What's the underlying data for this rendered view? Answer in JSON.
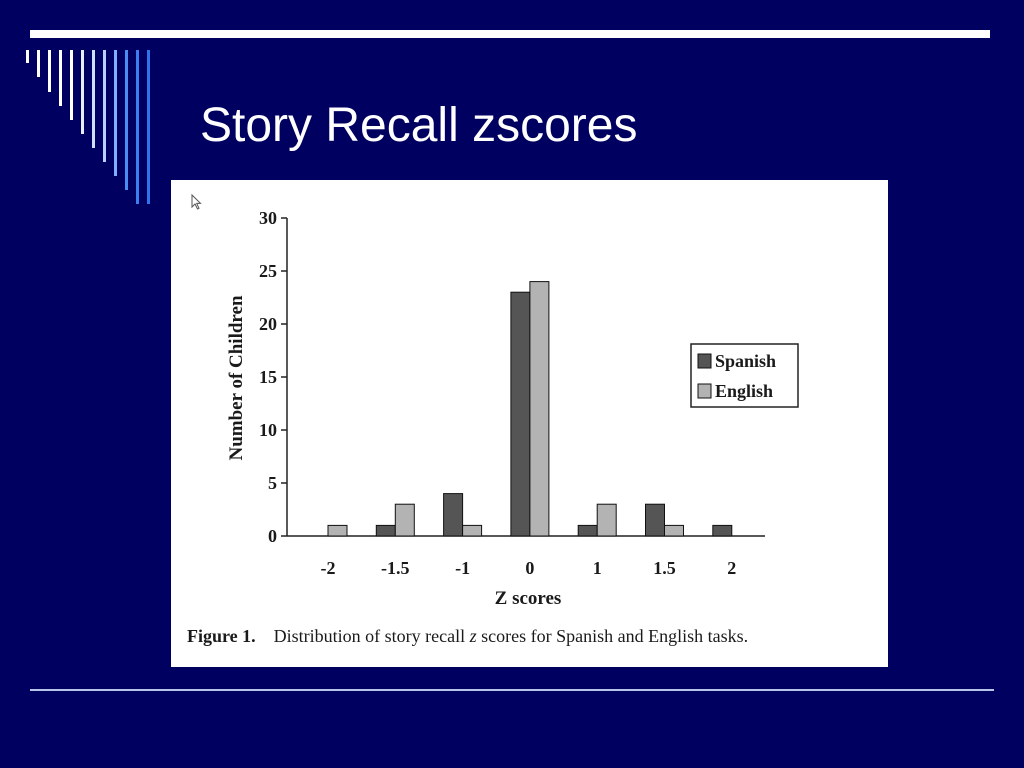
{
  "slide": {
    "title": "Story Recall zscores"
  },
  "colors": {
    "background": "#000060",
    "title_text": "#ffffff",
    "spanish_bar": "#555555",
    "english_bar": "#b3b3b3",
    "stripe_white": "#ffffff",
    "stripe_blue": "#3b7ff0"
  },
  "icons": {
    "cursor": "mouse-cursor-icon"
  },
  "chart_data": {
    "type": "bar",
    "categories": [
      "-2",
      "-1.5",
      "-1",
      "0",
      "1",
      "1.5",
      "2"
    ],
    "series": [
      {
        "name": "Spanish",
        "values": [
          0,
          1,
          4,
          23,
          1,
          3,
          1
        ]
      },
      {
        "name": "English",
        "values": [
          1,
          3,
          1,
          24,
          3,
          1,
          0
        ]
      }
    ],
    "xlabel": "Z scores",
    "ylabel": "Number of Children",
    "ylim": [
      0,
      30
    ],
    "yticks": [
      "0",
      "5",
      "10",
      "15",
      "20",
      "25",
      "30"
    ],
    "grid": false,
    "legend_position": "right"
  },
  "caption": {
    "label": "Figure 1.",
    "text_before": "Distribution of story recall ",
    "text_italic": "z",
    "text_after": " scores for Spanish and English tasks."
  }
}
